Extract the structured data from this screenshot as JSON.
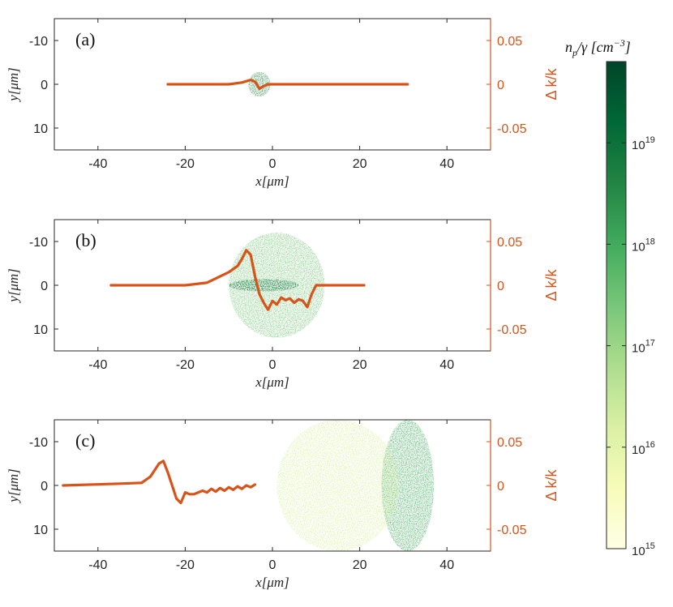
{
  "chart_data": [
    {
      "type": "heatmap+line",
      "panel_label": "(a)",
      "xlabel": "x[μm]",
      "ylabel": "y[μm]",
      "right_ylabel": "Δ k/k",
      "xlim": [
        -50,
        50
      ],
      "ylim": [
        -15,
        15
      ],
      "right_ylim": [
        -0.075,
        0.075
      ],
      "x_ticks": [
        -40,
        -20,
        0,
        20,
        40
      ],
      "y_ticks": [
        -10,
        0,
        10
      ],
      "right_ticks": [
        "0.05",
        "0",
        "-0.05"
      ],
      "density_blobs": [
        {
          "cx": -3,
          "cy": 0,
          "rx": 2.5,
          "ry": 2.8,
          "log_density": 18.8
        }
      ],
      "line_series": {
        "name": "Δ k/k",
        "color": "#D95319",
        "x": [
          -24,
          -10,
          -7,
          -5,
          -4,
          -3,
          -2,
          -1,
          0,
          2,
          31
        ],
        "y": [
          0,
          0,
          0.002,
          0.005,
          0.003,
          -0.005,
          -0.002,
          0.0,
          0,
          0,
          0
        ]
      }
    },
    {
      "type": "heatmap+line",
      "panel_label": "(b)",
      "xlabel": "x[μm]",
      "ylabel": "y[μm]",
      "right_ylabel": "Δ k/k",
      "xlim": [
        -50,
        50
      ],
      "ylim": [
        -15,
        15
      ],
      "right_ylim": [
        -0.075,
        0.075
      ],
      "x_ticks": [
        -40,
        -20,
        0,
        20,
        40
      ],
      "y_ticks": [
        -10,
        0,
        10
      ],
      "right_ticks": [
        "0.05",
        "0",
        "-0.05"
      ],
      "density_blobs": [
        {
          "cx": 1,
          "cy": 0,
          "rx": 11,
          "ry": 12,
          "log_density": 17.3
        },
        {
          "cx": -2,
          "cy": 0,
          "rx": 8,
          "ry": 1.4,
          "log_density": 19.4
        }
      ],
      "line_series": {
        "name": "Δ k/k",
        "color": "#D95319",
        "x": [
          -37,
          -20,
          -15,
          -10,
          -8,
          -7,
          -6,
          -5,
          -4,
          -3,
          -2,
          -1,
          0,
          1,
          2,
          3,
          4,
          5,
          6,
          7,
          8,
          9,
          10,
          11,
          21
        ],
        "y": [
          0,
          0,
          0.003,
          0.015,
          0.022,
          0.03,
          0.04,
          0.035,
          0.01,
          -0.01,
          -0.02,
          -0.028,
          -0.018,
          -0.022,
          -0.014,
          -0.017,
          -0.015,
          -0.02,
          -0.016,
          -0.018,
          -0.025,
          -0.01,
          0,
          0,
          0
        ]
      }
    },
    {
      "type": "heatmap+line",
      "panel_label": "(c)",
      "xlabel": "x[μm]",
      "ylabel": "y[μm]",
      "right_ylabel": "Δ k/k",
      "xlim": [
        -50,
        50
      ],
      "ylim": [
        -15,
        15
      ],
      "right_ylim": [
        -0.075,
        0.075
      ],
      "x_ticks": [
        -40,
        -20,
        0,
        20,
        40
      ],
      "y_ticks": [
        -10,
        0,
        10
      ],
      "right_ticks": [
        "0.05",
        "0",
        "-0.05"
      ],
      "density_blobs": [
        {
          "cx": 31,
          "cy": 0,
          "rx": 6,
          "ry": 15,
          "log_density": 18.2
        },
        {
          "cx": 15,
          "cy": 0,
          "rx": 14,
          "ry": 15,
          "log_density": 16.2
        }
      ],
      "line_series": {
        "name": "Δ k/k",
        "color": "#D95319",
        "x": [
          -48,
          -35,
          -30,
          -28,
          -26,
          -25,
          -24,
          -23,
          -22,
          -21,
          -20,
          -19,
          -18,
          -17,
          -16,
          -15,
          -14,
          -13,
          -12,
          -11,
          -10,
          -9,
          -8,
          -7,
          -6,
          -5,
          -4
        ],
        "y": [
          0,
          0.002,
          0.003,
          0.01,
          0.025,
          0.028,
          0.015,
          0.0,
          -0.015,
          -0.02,
          -0.008,
          -0.01,
          -0.01,
          -0.008,
          -0.006,
          -0.008,
          -0.004,
          -0.007,
          -0.003,
          -0.006,
          -0.002,
          -0.005,
          -0.001,
          -0.004,
          0.0,
          -0.002,
          0.001
        ]
      }
    }
  ],
  "colorbar": {
    "title": "n_p/γ [cm^-3]",
    "title_main": "n",
    "title_sub": "p",
    "title_rest": "/γ [cm",
    "title_sup": "−3",
    "title_end": "]",
    "log_range": [
      15,
      19.8
    ],
    "ticks": [
      {
        "base": "10",
        "exp": "19",
        "value": 19
      },
      {
        "base": "10",
        "exp": "18",
        "value": 18
      },
      {
        "base": "10",
        "exp": "17",
        "value": 17
      },
      {
        "base": "10",
        "exp": "16",
        "value": 16
      },
      {
        "base": "10",
        "exp": "15",
        "value": 15
      }
    ],
    "colormap": [
      "#ffffe5",
      "#f7fcb9",
      "#d9f0a3",
      "#addd8e",
      "#78c679",
      "#41ab5d",
      "#238443",
      "#006837",
      "#004529"
    ]
  }
}
